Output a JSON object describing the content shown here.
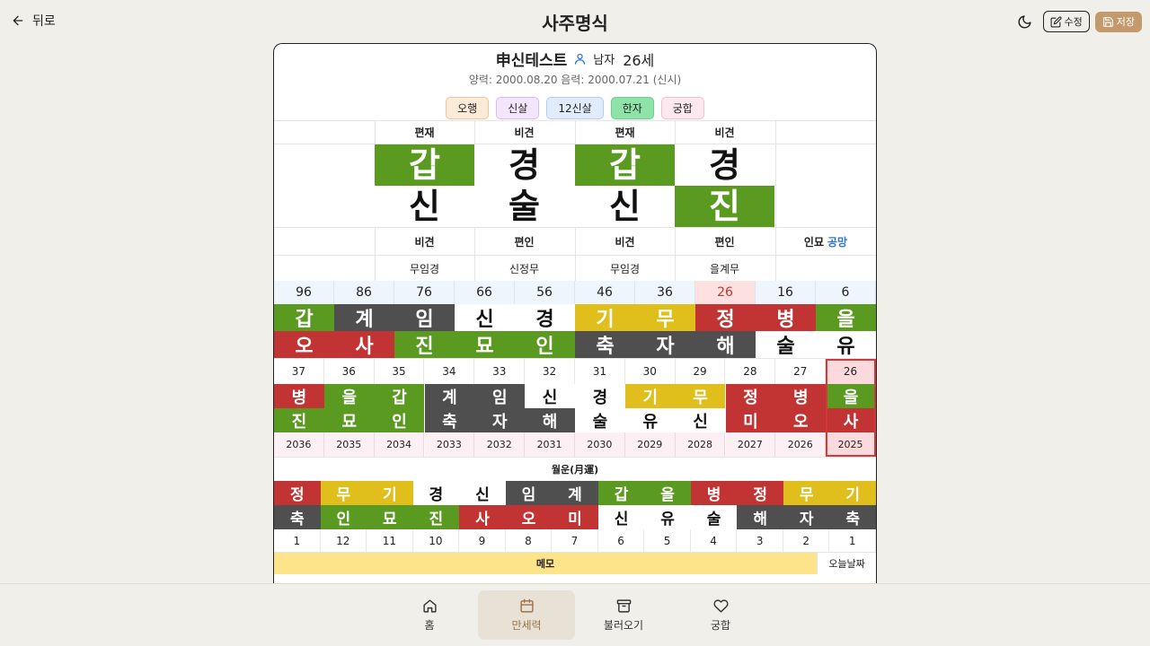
{
  "header": {
    "back_label": "뒤로",
    "title": "사주명식",
    "edit_label": "수정",
    "save_label": "저장",
    "save_color": "#c49a6c"
  },
  "profile": {
    "name": "申신테스트",
    "gender": "남자",
    "age": "26세",
    "dates": "양력: 2000.08.20 음력: 2000.07.21 (신시)"
  },
  "pills": [
    {
      "label": "오행",
      "bg": "#fdebd9",
      "border": "#f0c59a"
    },
    {
      "label": "신살",
      "bg": "#f1e6fb",
      "border": "#d7bdf0"
    },
    {
      "label": "12신살",
      "bg": "#e0ecfb",
      "border": "#b4cdf0"
    },
    {
      "label": "한자",
      "bg": "#8fe3a8",
      "border": "#6ccf8b"
    },
    {
      "label": "궁합",
      "bg": "#fde8ef",
      "border": "#f2bdd0"
    }
  ],
  "pillars": {
    "stem_gods": [
      "편재",
      "비견",
      "편재",
      "비견"
    ],
    "stems": [
      {
        "char": "갑",
        "color": "green"
      },
      {
        "char": "경",
        "color": "white"
      },
      {
        "char": "갑",
        "color": "green"
      },
      {
        "char": "경",
        "color": "white"
      }
    ],
    "branches": [
      {
        "char": "신",
        "color": "white"
      },
      {
        "char": "술",
        "color": "white"
      },
      {
        "char": "신",
        "color": "white"
      },
      {
        "char": "진",
        "color": "green"
      }
    ],
    "branch_gods": [
      "비견",
      "편인",
      "비견",
      "편인"
    ],
    "gongmang_prefix": "인묘",
    "gongmang_label": "공망",
    "hidden_stems": [
      "무임경",
      "신정무",
      "무임경",
      "을계무"
    ]
  },
  "daeun": {
    "ages": [
      "96",
      "86",
      "76",
      "66",
      "56",
      "46",
      "36",
      "26",
      "16",
      "6"
    ],
    "highlight_index": 7,
    "stems": [
      {
        "char": "갑",
        "color": "green"
      },
      {
        "char": "계",
        "color": "dark"
      },
      {
        "char": "임",
        "color": "dark"
      },
      {
        "char": "신",
        "color": "white"
      },
      {
        "char": "경",
        "color": "white"
      },
      {
        "char": "기",
        "color": "yellow"
      },
      {
        "char": "무",
        "color": "yellow"
      },
      {
        "char": "정",
        "color": "red"
      },
      {
        "char": "병",
        "color": "red"
      },
      {
        "char": "을",
        "color": "green"
      }
    ],
    "branches": [
      {
        "char": "오",
        "color": "red"
      },
      {
        "char": "사",
        "color": "red"
      },
      {
        "char": "진",
        "color": "green"
      },
      {
        "char": "묘",
        "color": "green"
      },
      {
        "char": "인",
        "color": "green"
      },
      {
        "char": "축",
        "color": "dark"
      },
      {
        "char": "자",
        "color": "dark"
      },
      {
        "char": "해",
        "color": "dark"
      },
      {
        "char": "술",
        "color": "white"
      },
      {
        "char": "유",
        "color": "white"
      }
    ]
  },
  "seun": {
    "ages": [
      "37",
      "36",
      "35",
      "34",
      "33",
      "32",
      "31",
      "30",
      "29",
      "28",
      "27",
      "26"
    ],
    "years": [
      "2036",
      "2035",
      "2034",
      "2033",
      "2032",
      "2031",
      "2030",
      "2029",
      "2028",
      "2027",
      "2026",
      "2025"
    ],
    "selected_index": 11,
    "stems": [
      {
        "char": "병",
        "color": "red"
      },
      {
        "char": "을",
        "color": "green"
      },
      {
        "char": "갑",
        "color": "green"
      },
      {
        "char": "계",
        "color": "dark"
      },
      {
        "char": "임",
        "color": "dark"
      },
      {
        "char": "신",
        "color": "white"
      },
      {
        "char": "경",
        "color": "white"
      },
      {
        "char": "기",
        "color": "yellow"
      },
      {
        "char": "무",
        "color": "yellow"
      },
      {
        "char": "정",
        "color": "red"
      },
      {
        "char": "병",
        "color": "red"
      },
      {
        "char": "을",
        "color": "green"
      }
    ],
    "branches": [
      {
        "char": "진",
        "color": "green"
      },
      {
        "char": "묘",
        "color": "green"
      },
      {
        "char": "인",
        "color": "green"
      },
      {
        "char": "축",
        "color": "dark"
      },
      {
        "char": "자",
        "color": "dark"
      },
      {
        "char": "해",
        "color": "dark"
      },
      {
        "char": "술",
        "color": "white"
      },
      {
        "char": "유",
        "color": "white"
      },
      {
        "char": "신",
        "color": "white"
      },
      {
        "char": "미",
        "color": "red"
      },
      {
        "char": "오",
        "color": "red"
      },
      {
        "char": "사",
        "color": "red"
      }
    ]
  },
  "wolun": {
    "title": "월운(月運)",
    "months": [
      "1",
      "12",
      "11",
      "10",
      "9",
      "8",
      "7",
      "6",
      "5",
      "4",
      "3",
      "2",
      "1"
    ],
    "stems": [
      {
        "char": "정",
        "color": "red"
      },
      {
        "char": "무",
        "color": "yellow"
      },
      {
        "char": "기",
        "color": "yellow"
      },
      {
        "char": "경",
        "color": "white"
      },
      {
        "char": "신",
        "color": "white"
      },
      {
        "char": "임",
        "color": "dark"
      },
      {
        "char": "계",
        "color": "dark"
      },
      {
        "char": "갑",
        "color": "green"
      },
      {
        "char": "을",
        "color": "green"
      },
      {
        "char": "병",
        "color": "red"
      },
      {
        "char": "정",
        "color": "red"
      },
      {
        "char": "무",
        "color": "yellow"
      },
      {
        "char": "기",
        "color": "yellow"
      }
    ],
    "branches": [
      {
        "char": "축",
        "color": "dark"
      },
      {
        "char": "인",
        "color": "green"
      },
      {
        "char": "묘",
        "color": "green"
      },
      {
        "char": "진",
        "color": "green"
      },
      {
        "char": "사",
        "color": "red"
      },
      {
        "char": "오",
        "color": "red"
      },
      {
        "char": "미",
        "color": "red"
      },
      {
        "char": "신",
        "color": "white"
      },
      {
        "char": "유",
        "color": "white"
      },
      {
        "char": "술",
        "color": "white"
      },
      {
        "char": "해",
        "color": "dark"
      },
      {
        "char": "자",
        "color": "dark"
      },
      {
        "char": "축",
        "color": "dark"
      }
    ]
  },
  "memo": {
    "label": "메모",
    "today_label": "오늘날짜"
  },
  "nav": {
    "items": [
      {
        "label": "홈",
        "icon": "home-icon"
      },
      {
        "label": "만세력",
        "icon": "calendar-icon"
      },
      {
        "label": "불러오기",
        "icon": "archive-icon"
      },
      {
        "label": "궁합",
        "icon": "heart-icon"
      }
    ],
    "active_index": 1
  }
}
